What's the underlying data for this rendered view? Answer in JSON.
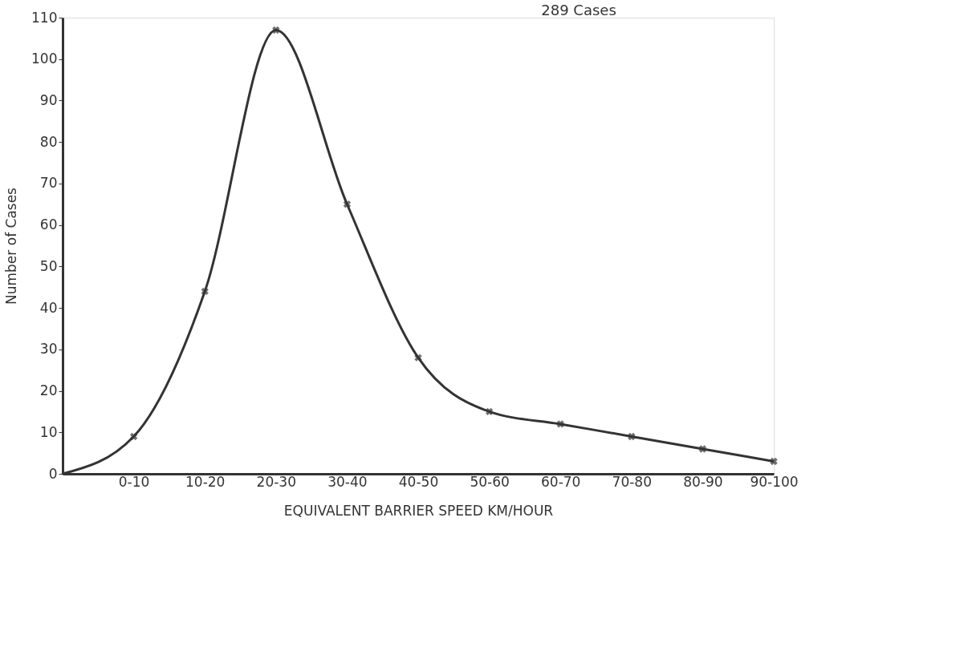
{
  "chart_data": {
    "type": "line",
    "title": "289 Cases",
    "xlabel": "EQUIVALENT BARRIER SPEED KM/HOUR",
    "ylabel": "Number of Cases",
    "categories": [
      null,
      "0-10",
      "10-20",
      "20-30",
      "30-40",
      "40-50",
      "50-60",
      "60-70",
      "70-80",
      "80-90",
      "90-100"
    ],
    "series": [
      {
        "color": "#333333",
        "values": [
          0,
          9,
          44,
          107,
          65,
          28,
          15,
          12,
          9,
          6,
          3
        ]
      }
    ],
    "ylim": [
      0,
      110
    ],
    "yticks": [
      0,
      10,
      20,
      30,
      40,
      50,
      60,
      70,
      80,
      90,
      100,
      110
    ],
    "grid": false,
    "marker": "cross",
    "line_style": "solid"
  }
}
